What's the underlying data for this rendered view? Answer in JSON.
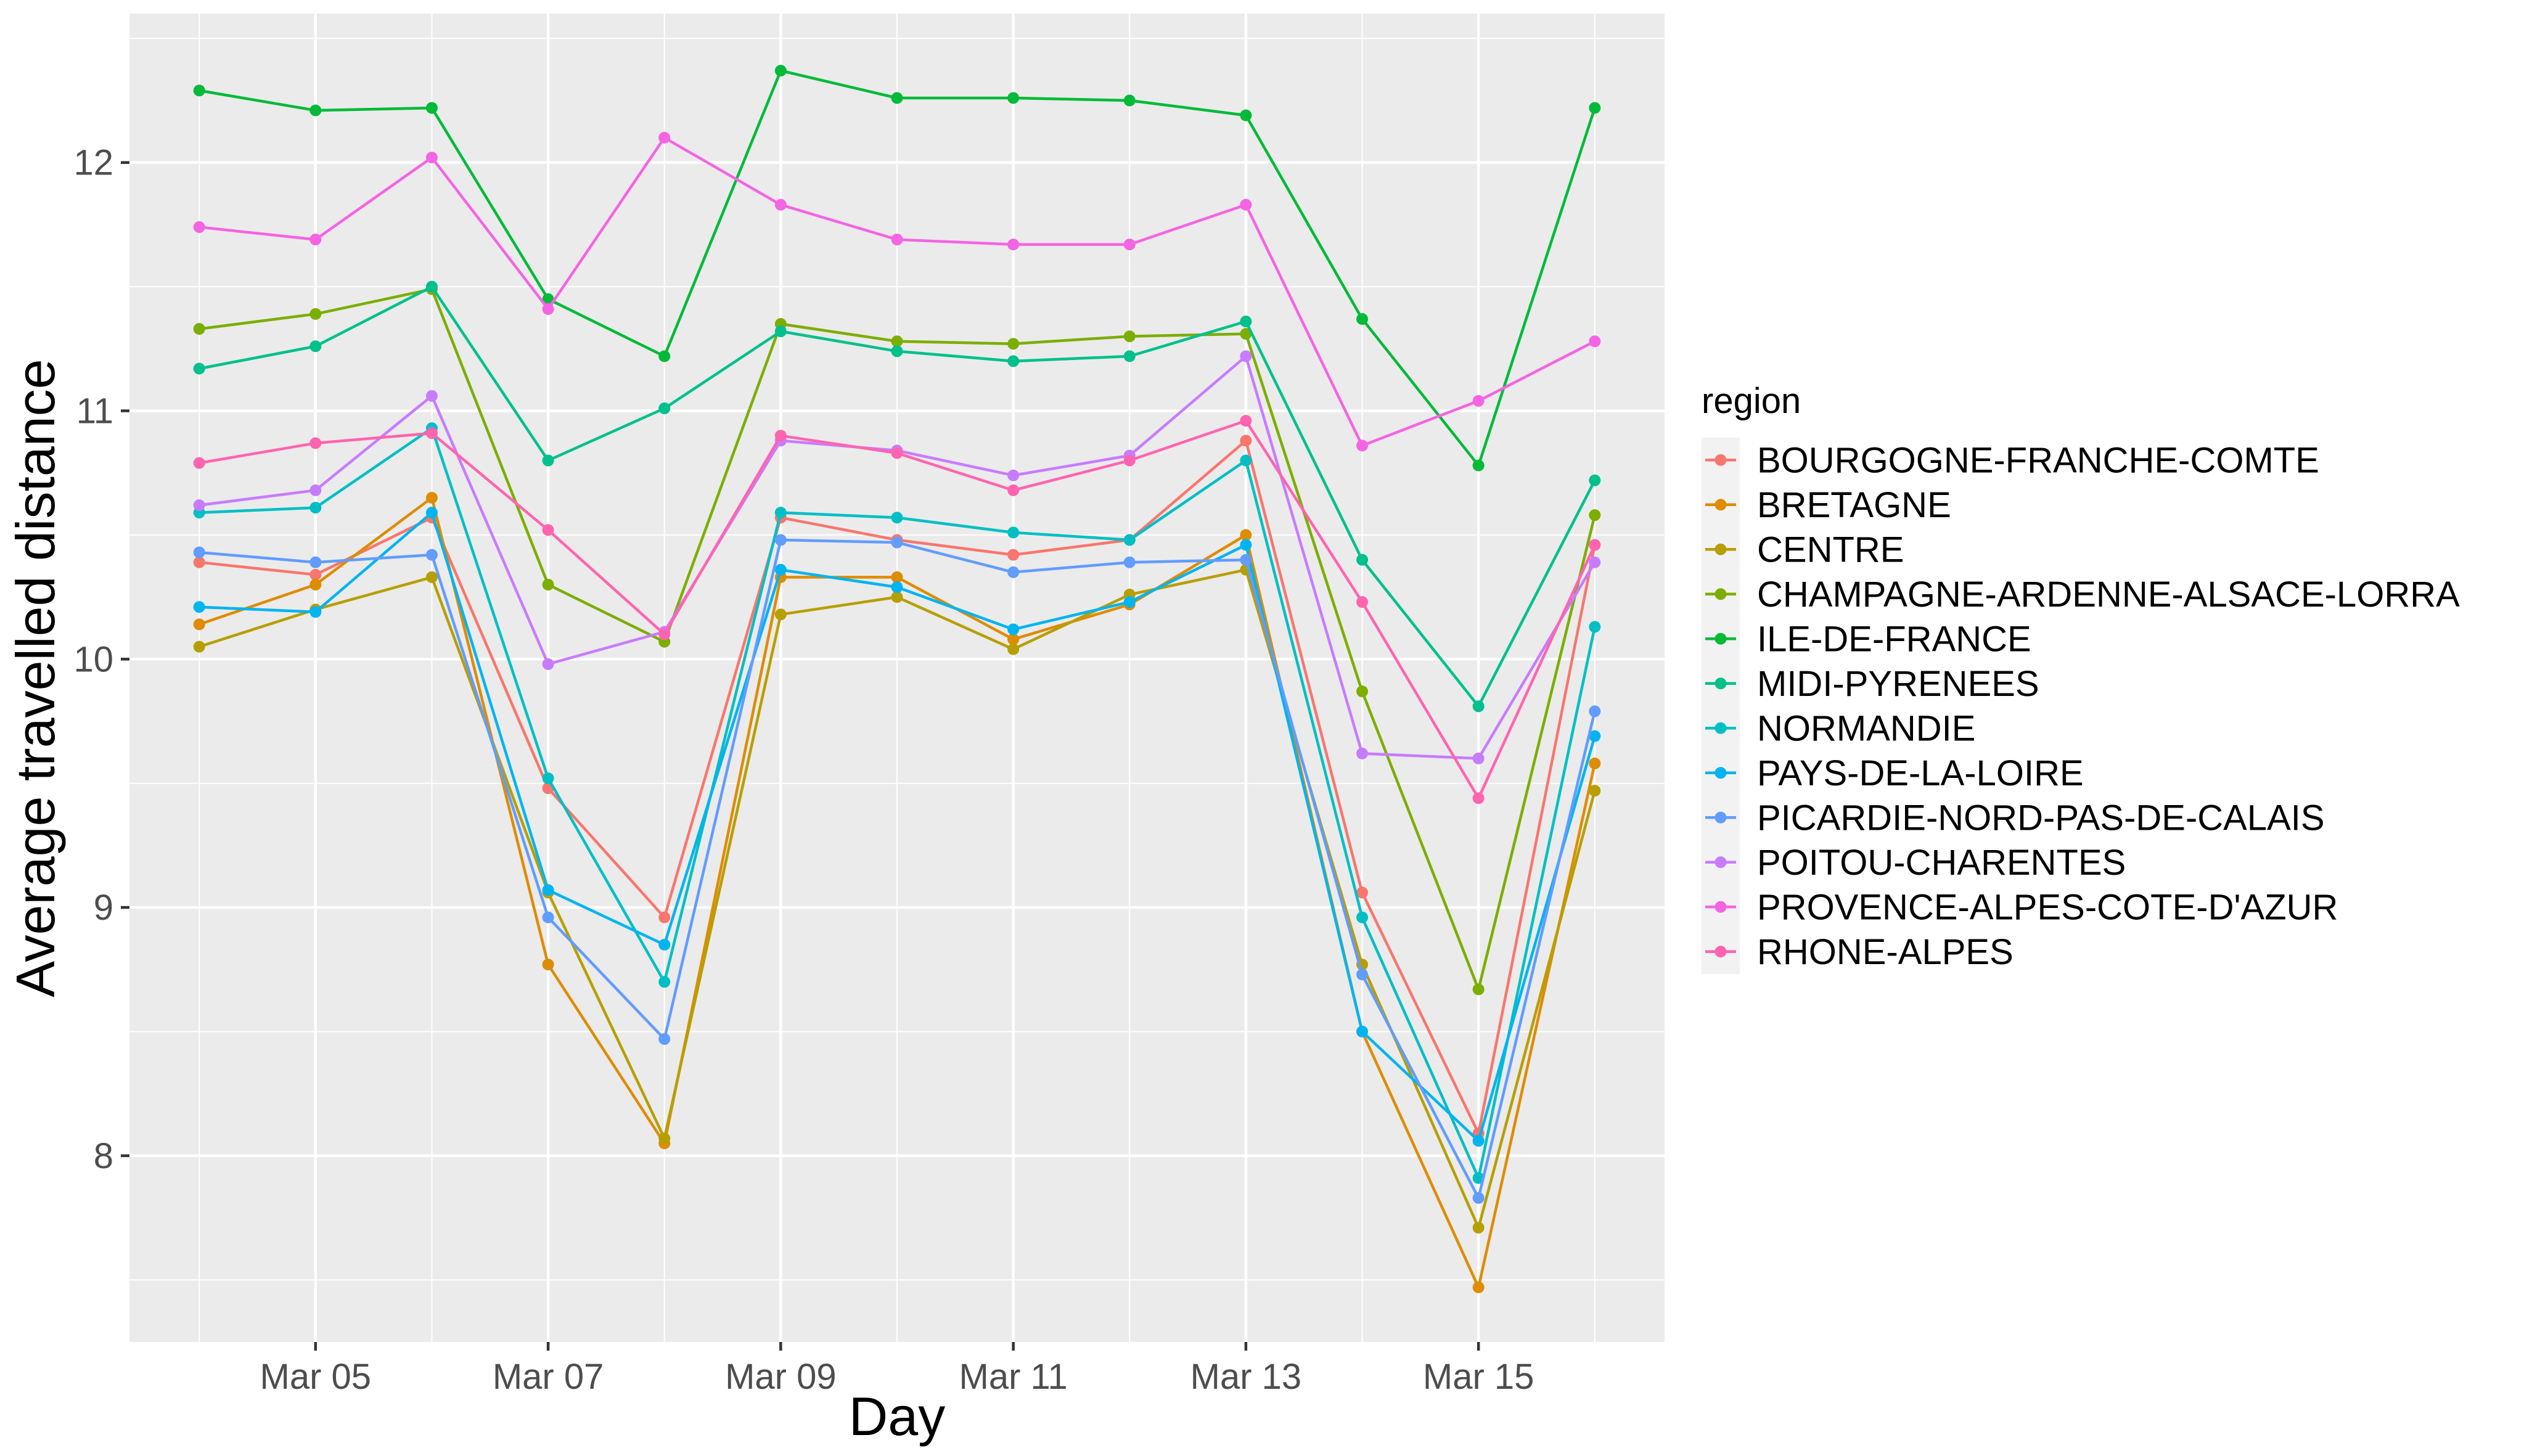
{
  "chart_data": {
    "type": "line",
    "xlabel": "Day",
    "ylabel": "Average travelled distance",
    "x": [
      "2020-03-04",
      "2020-03-05",
      "2020-03-06",
      "2020-03-07",
      "2020-03-08",
      "2020-03-09",
      "2020-03-10",
      "2020-03-11",
      "2020-03-12",
      "2020-03-13",
      "2020-03-14",
      "2020-03-15",
      "2020-03-16"
    ],
    "xlim": [
      "2020-03-03T09:36:00",
      "2020-03-16T14:24:00"
    ],
    "ylim": [
      7.25,
      12.6
    ],
    "xticks": [
      {
        "x": "2020-03-05",
        "label": "Mar 05"
      },
      {
        "x": "2020-03-07",
        "label": "Mar 07"
      },
      {
        "x": "2020-03-09",
        "label": "Mar 09"
      },
      {
        "x": "2020-03-11",
        "label": "Mar 11"
      },
      {
        "x": "2020-03-13",
        "label": "Mar 13"
      },
      {
        "x": "2020-03-15",
        "label": "Mar 15"
      }
    ],
    "yticks": [
      8,
      9,
      10,
      11,
      12
    ],
    "grid": true,
    "legend": {
      "title": "region",
      "position": "right"
    },
    "series": [
      {
        "name": "BOURGOGNE-FRANCHE-COMTE",
        "color": "#F8766D",
        "values": [
          10.39,
          10.34,
          10.57,
          9.48,
          8.96,
          10.57,
          10.48,
          10.42,
          10.48,
          10.88,
          9.06,
          8.09,
          10.46
        ]
      },
      {
        "name": "BRETAGNE",
        "color": "#DE8C00",
        "values": [
          10.14,
          10.3,
          10.65,
          8.77,
          8.05,
          10.33,
          10.33,
          10.08,
          10.22,
          10.5,
          8.5,
          7.47,
          9.58
        ]
      },
      {
        "name": "CENTRE",
        "color": "#B79F00",
        "values": [
          10.05,
          10.2,
          10.33,
          9.06,
          8.07,
          10.18,
          10.25,
          10.04,
          10.26,
          10.36,
          8.77,
          7.71,
          9.47
        ]
      },
      {
        "name": "CHAMPAGNE-ARDENNE-ALSACE-LORRA",
        "color": "#7CAE00",
        "values": [
          11.33,
          11.39,
          11.49,
          10.3,
          10.07,
          11.35,
          11.28,
          11.27,
          11.3,
          11.31,
          9.87,
          8.67,
          10.58
        ]
      },
      {
        "name": "ILE-DE-FRANCE",
        "color": "#00BA38",
        "values": [
          12.29,
          12.21,
          12.22,
          11.45,
          11.22,
          12.37,
          12.26,
          12.26,
          12.25,
          12.19,
          11.37,
          10.78,
          12.22
        ]
      },
      {
        "name": "MIDI-PYRENEES",
        "color": "#00C08B",
        "values": [
          11.17,
          11.26,
          11.5,
          10.8,
          11.01,
          11.32,
          11.24,
          11.2,
          11.22,
          11.36,
          10.4,
          9.81,
          10.72
        ]
      },
      {
        "name": "NORMANDIE",
        "color": "#00BFC4",
        "values": [
          10.59,
          10.61,
          10.93,
          9.52,
          8.7,
          10.59,
          10.57,
          10.51,
          10.48,
          10.8,
          8.96,
          7.91,
          10.13
        ]
      },
      {
        "name": "PAYS-DE-LA-LOIRE",
        "color": "#00B4F0",
        "values": [
          10.21,
          10.19,
          10.59,
          9.07,
          8.85,
          10.36,
          10.29,
          10.12,
          10.23,
          10.46,
          8.5,
          8.06,
          9.69
        ]
      },
      {
        "name": "PICARDIE-NORD-PAS-DE-CALAIS",
        "color": "#619CFF",
        "values": [
          10.43,
          10.39,
          10.42,
          8.96,
          8.47,
          10.48,
          10.47,
          10.35,
          10.39,
          10.4,
          8.73,
          7.83,
          9.79
        ]
      },
      {
        "name": "POITOU-CHARENTES",
        "color": "#C77CFF",
        "values": [
          10.62,
          10.68,
          11.06,
          9.98,
          10.11,
          10.88,
          10.84,
          10.74,
          10.82,
          11.22,
          9.62,
          9.6,
          10.39
        ]
      },
      {
        "name": "PROVENCE-ALPES-COTE-D'AZUR",
        "color": "#F564E3",
        "values": [
          11.74,
          11.69,
          12.02,
          11.41,
          12.1,
          11.83,
          11.69,
          11.67,
          11.67,
          11.83,
          10.86,
          11.04,
          11.28
        ]
      },
      {
        "name": "RHONE-ALPES",
        "color": "#FF64B0",
        "values": [
          10.79,
          10.87,
          10.91,
          10.52,
          10.1,
          10.9,
          10.83,
          10.68,
          10.8,
          10.96,
          10.23,
          9.44,
          10.46
        ]
      }
    ]
  }
}
